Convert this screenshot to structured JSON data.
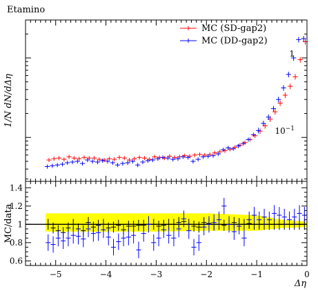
{
  "chart_data": [
    {
      "type": "scatter",
      "title": "Etamino",
      "ylabel": "1/N dN/dΔη",
      "xlabel": "",
      "xlim": [
        -5.6,
        0
      ],
      "ylim": [
        0.028,
        3.0
      ],
      "yscale": "log",
      "y_tick_labels": [
        {
          "value": 0.1,
          "base": "10",
          "exp": "−1"
        },
        {
          "value": 1,
          "base": "1",
          "exp": ""
        }
      ],
      "legend": {
        "placement": "top-right"
      },
      "series": [
        {
          "name": "MC (SD-gap2)",
          "color": "#ff0000",
          "x": [
            -5.15,
            -5.05,
            -4.95,
            -4.85,
            -4.75,
            -4.65,
            -4.55,
            -4.45,
            -4.35,
            -4.25,
            -4.15,
            -4.05,
            -3.95,
            -3.85,
            -3.75,
            -3.65,
            -3.55,
            -3.45,
            -3.35,
            -3.25,
            -3.15,
            -3.05,
            -2.95,
            -2.85,
            -2.75,
            -2.65,
            -2.55,
            -2.45,
            -2.35,
            -2.25,
            -2.15,
            -2.05,
            -1.95,
            -1.85,
            -1.75,
            -1.65,
            -1.55,
            -1.45,
            -1.35,
            -1.25,
            -1.15,
            -1.05,
            -0.95,
            -0.85,
            -0.75,
            -0.65,
            -0.55,
            -0.45,
            -0.35,
            -0.25,
            -0.15,
            -0.05
          ],
          "y": [
            0.052,
            0.054,
            0.055,
            0.053,
            0.057,
            0.055,
            0.054,
            0.056,
            0.055,
            0.055,
            0.053,
            0.052,
            0.054,
            0.053,
            0.056,
            0.055,
            0.052,
            0.054,
            0.056,
            0.055,
            0.053,
            0.057,
            0.056,
            0.055,
            0.058,
            0.056,
            0.057,
            0.059,
            0.058,
            0.06,
            0.061,
            0.06,
            0.061,
            0.064,
            0.066,
            0.068,
            0.071,
            0.075,
            0.08,
            0.086,
            0.094,
            0.105,
            0.12,
            0.14,
            0.17,
            0.21,
            0.27,
            0.34,
            0.44,
            0.58,
            0.95,
            1.6
          ]
        },
        {
          "name": "MC (DD-gap2)",
          "color": "#0000ff",
          "x": [
            -5.15,
            -5.05,
            -4.95,
            -4.85,
            -4.75,
            -4.65,
            -4.55,
            -4.45,
            -4.35,
            -4.25,
            -4.15,
            -4.05,
            -3.95,
            -3.85,
            -3.75,
            -3.65,
            -3.55,
            -3.45,
            -3.35,
            -3.25,
            -3.15,
            -3.05,
            -2.95,
            -2.85,
            -2.75,
            -2.65,
            -2.55,
            -2.45,
            -2.35,
            -2.25,
            -2.15,
            -2.05,
            -1.95,
            -1.85,
            -1.75,
            -1.65,
            -1.55,
            -1.45,
            -1.35,
            -1.25,
            -1.15,
            -1.05,
            -0.95,
            -0.85,
            -0.75,
            -0.65,
            -0.55,
            -0.45,
            -0.35,
            -0.25,
            -0.15,
            -0.05
          ],
          "y": [
            0.043,
            0.044,
            0.045,
            0.046,
            0.048,
            0.049,
            0.05,
            0.047,
            0.052,
            0.05,
            0.049,
            0.051,
            0.05,
            0.048,
            0.045,
            0.047,
            0.048,
            0.05,
            0.045,
            0.049,
            0.051,
            0.052,
            0.054,
            0.056,
            0.055,
            0.053,
            0.054,
            0.057,
            0.056,
            0.05,
            0.053,
            0.057,
            0.058,
            0.059,
            0.062,
            0.07,
            0.074,
            0.072,
            0.078,
            0.084,
            0.094,
            0.108,
            0.122,
            0.15,
            0.18,
            0.23,
            0.3,
            0.42,
            0.62,
            1.0,
            1.7,
            1.75
          ]
        }
      ]
    },
    {
      "type": "scatter",
      "title": "",
      "ylabel": "MC/data",
      "xlabel": "Δη",
      "xlim": [
        -5.6,
        0
      ],
      "ylim": [
        0.55,
        1.47
      ],
      "x_ticks": [
        -5,
        -4,
        -3,
        -2,
        -1,
        0
      ],
      "x_tick_labels": [
        "−5",
        "−4",
        "−3",
        "−2",
        "−1",
        "0"
      ],
      "y_ticks": [
        0.6,
        0.8,
        1.0,
        1.2,
        1.4
      ],
      "y_tick_labels": [
        "0.6",
        "0.8",
        "1",
        "1.2",
        "1.4"
      ],
      "band": {
        "color": "#ffff00",
        "x": [
          -5.2,
          -4.0,
          -3.0,
          -2.0,
          -1.0,
          -0.5,
          0
        ],
        "low": [
          0.92,
          0.92,
          0.92,
          0.93,
          0.93,
          0.96,
          0.97
        ],
        "high": [
          1.12,
          1.12,
          1.12,
          1.12,
          1.1,
          1.05,
          1.03
        ]
      },
      "series": [
        {
          "name": "",
          "color": "#000000",
          "x": [
            -5.15,
            -5.05,
            -4.95,
            -4.85,
            -4.75,
            -4.65,
            -4.55,
            -4.45,
            -4.35,
            -4.25,
            -4.15,
            -4.05,
            -3.95,
            -3.85,
            -3.75,
            -3.65,
            -3.55,
            -3.45,
            -3.35,
            -3.25,
            -3.15,
            -3.05,
            -2.95,
            -2.85,
            -2.75,
            -2.65,
            -2.55,
            -2.45,
            -2.35,
            -2.25,
            -2.15,
            -2.05,
            -1.95,
            -1.85,
            -1.75,
            -1.65,
            -1.55,
            -1.45,
            -1.35,
            -1.25,
            -1.15,
            -1.05,
            -0.95,
            -0.85,
            -0.75,
            -0.65,
            -0.55,
            -0.45,
            -0.35,
            -0.25,
            -0.15,
            -0.05
          ],
          "y": [
            1.0,
            0.96,
            0.93,
            0.91,
            0.96,
            1.0,
            0.95,
            0.93,
            1.02,
            0.97,
            0.99,
            1.0,
            0.96,
            0.97,
            0.99,
            0.94,
            0.98,
            0.98,
            0.99,
            0.99,
            1.0,
            1.0,
            0.98,
            0.99,
            1.0,
            1.0,
            1.02,
            1.03,
            1.0,
            0.98,
            0.97,
            1.02,
            1.01,
            1.0,
            1.0,
            0.99,
            1.0,
            1.02,
            1.0,
            1.0,
            1.01,
            1.0,
            1.0,
            1.0,
            1.0,
            1.0,
            1.0,
            1.0,
            1.0,
            1.0,
            1.0,
            1.0
          ]
        },
        {
          "name": "",
          "color": "#0000ff",
          "x": [
            -5.15,
            -5.05,
            -4.95,
            -4.85,
            -4.75,
            -4.65,
            -4.55,
            -4.45,
            -4.35,
            -4.25,
            -4.15,
            -4.05,
            -3.95,
            -3.85,
            -3.75,
            -3.65,
            -3.55,
            -3.45,
            -3.35,
            -3.25,
            -3.15,
            -3.05,
            -2.95,
            -2.85,
            -2.75,
            -2.65,
            -2.55,
            -2.45,
            -2.35,
            -2.25,
            -2.15,
            -2.05,
            -1.95,
            -1.85,
            -1.75,
            -1.65,
            -1.55,
            -1.45,
            -1.35,
            -1.25,
            -1.15,
            -1.05,
            -0.95,
            -0.85,
            -0.75,
            -0.65,
            -0.55,
            -0.45,
            -0.35,
            -0.25,
            -0.15,
            -0.05
          ],
          "y": [
            0.8,
            0.78,
            0.85,
            0.82,
            0.85,
            0.88,
            0.87,
            0.84,
            0.95,
            0.9,
            0.91,
            0.94,
            0.86,
            0.75,
            0.81,
            0.85,
            0.86,
            0.88,
            0.72,
            0.9,
            1.0,
            0.8,
            0.85,
            0.94,
            0.88,
            0.85,
            0.95,
            1.06,
            0.93,
            0.75,
            0.8,
            0.97,
            1.0,
            1.02,
            1.05,
            1.2,
            1.0,
            0.92,
            0.98,
            0.85,
            1.05,
            1.1,
            1.05,
            1.08,
            1.05,
            1.12,
            1.1,
            1.08,
            1.05,
            1.08,
            1.12,
            1.1
          ]
        }
      ]
    }
  ]
}
